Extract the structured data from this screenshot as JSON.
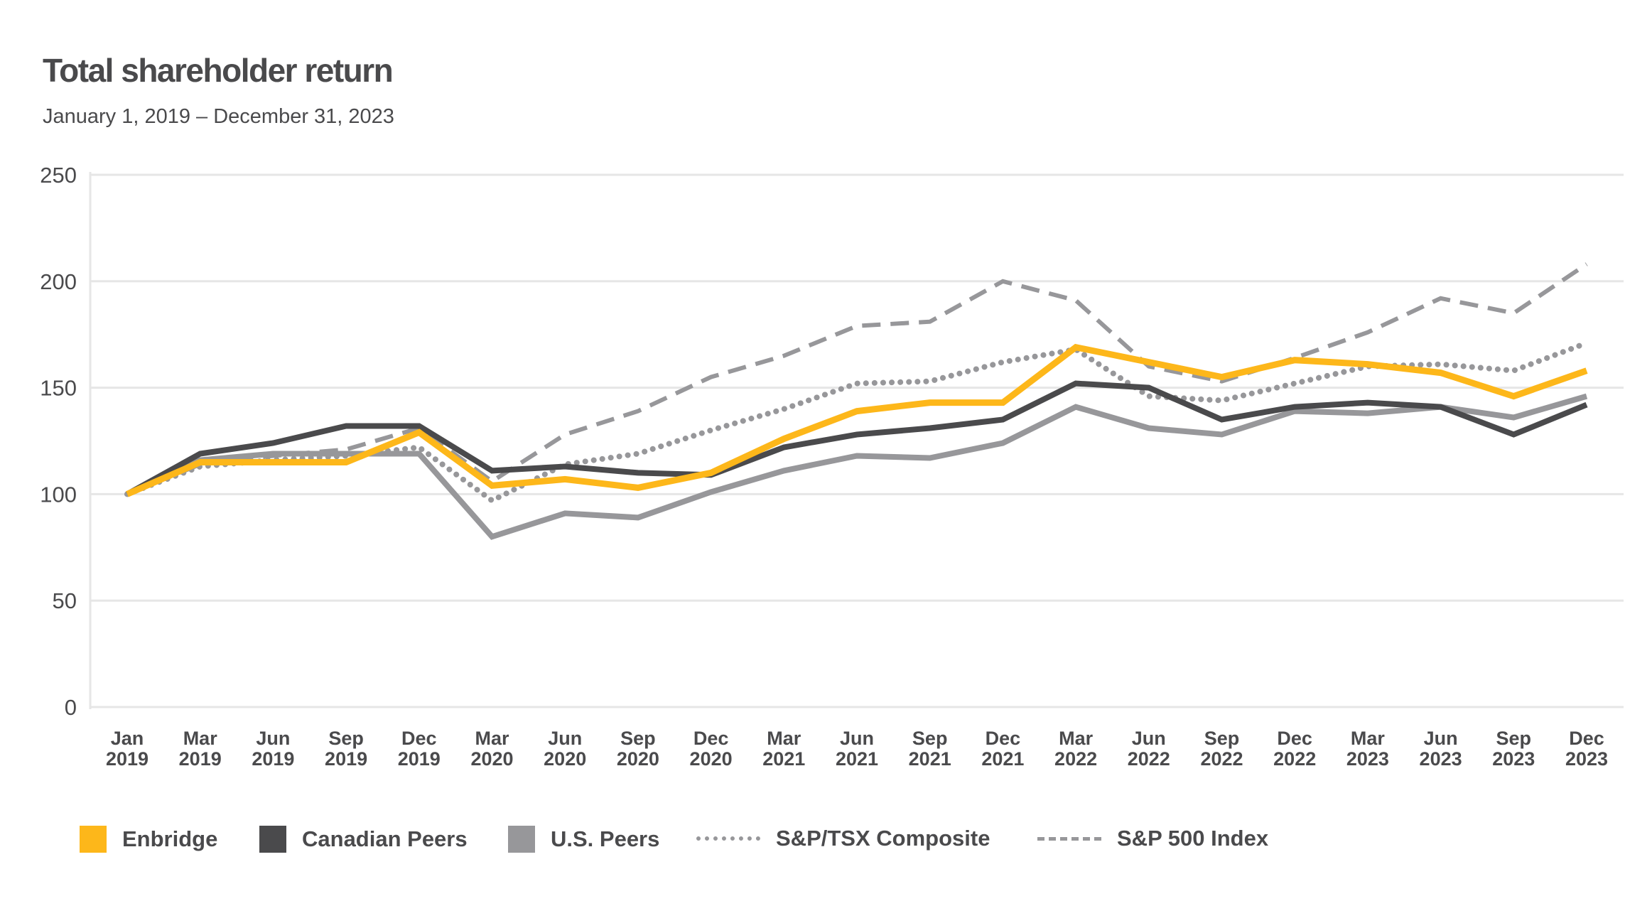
{
  "chart_data": {
    "type": "line",
    "title": "Total shareholder return",
    "subtitle": "January 1, 2019 – December 31, 2023",
    "xlabel": "",
    "ylabel": "",
    "ylim": [
      0,
      250
    ],
    "yticks": [
      "0",
      "50",
      "100",
      "150",
      "200",
      "250"
    ],
    "grid": true,
    "legend_position": "bottom",
    "categories": [
      [
        "Jan",
        "2019"
      ],
      [
        "Mar",
        "2019"
      ],
      [
        "Jun",
        "2019"
      ],
      [
        "Sep",
        "2019"
      ],
      [
        "Dec",
        "2019"
      ],
      [
        "Mar",
        "2020"
      ],
      [
        "Jun",
        "2020"
      ],
      [
        "Sep",
        "2020"
      ],
      [
        "Dec",
        "2020"
      ],
      [
        "Mar",
        "2021"
      ],
      [
        "Jun",
        "2021"
      ],
      [
        "Sep",
        "2021"
      ],
      [
        "Dec",
        "2021"
      ],
      [
        "Mar",
        "2022"
      ],
      [
        "Jun",
        "2022"
      ],
      [
        "Sep",
        "2022"
      ],
      [
        "Dec",
        "2022"
      ],
      [
        "Mar",
        "2023"
      ],
      [
        "Jun",
        "2023"
      ],
      [
        "Sep",
        "2023"
      ],
      [
        "Dec",
        "2023"
      ]
    ],
    "series": [
      {
        "name": "Enbridge",
        "color": "#fdb71a",
        "style": "solid",
        "legend_marker": "square",
        "values": [
          100,
          115,
          115,
          115,
          129,
          104,
          107,
          103,
          110,
          126,
          139,
          143,
          143,
          169,
          162,
          155,
          163,
          161,
          157,
          146,
          158
        ]
      },
      {
        "name": "Canadian Peers",
        "color": "#4a4a4c",
        "style": "solid",
        "legend_marker": "square",
        "values": [
          100,
          119,
          124,
          132,
          132,
          111,
          113,
          110,
          109,
          122,
          128,
          131,
          135,
          152,
          150,
          135,
          141,
          143,
          141,
          128,
          142
        ]
      },
      {
        "name": "U.S. Peers",
        "color": "#97979a",
        "style": "solid",
        "legend_marker": "square",
        "values": [
          100,
          116,
          119,
          119,
          119,
          80,
          91,
          89,
          101,
          111,
          118,
          117,
          124,
          141,
          131,
          128,
          139,
          138,
          141,
          136,
          146
        ]
      },
      {
        "name": "S&P/TSX Composite",
        "color": "#97979a",
        "style": "dotted",
        "legend_marker": "line",
        "values": [
          100,
          113,
          116,
          118,
          122,
          97,
          114,
          119,
          130,
          140,
          152,
          153,
          162,
          168,
          146,
          144,
          152,
          160,
          161,
          158,
          171
        ]
      },
      {
        "name": "S&P 500 Index",
        "color": "#97979a",
        "style": "dashed",
        "legend_marker": "line",
        "values": [
          100,
          114,
          118,
          121,
          131,
          106,
          128,
          139,
          155,
          165,
          179,
          181,
          200,
          191,
          160,
          153,
          164,
          176,
          192,
          185,
          208
        ]
      }
    ]
  }
}
